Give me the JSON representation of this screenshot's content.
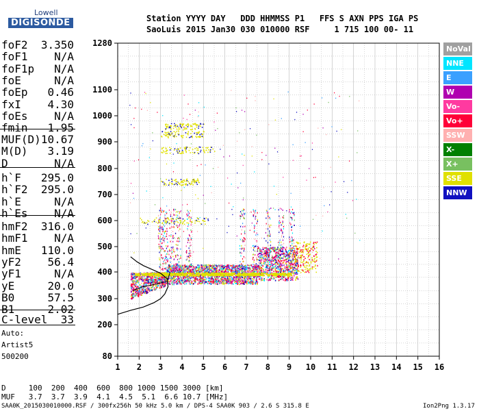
{
  "logo": {
    "line1": "Lowell",
    "line2": "DIGISONDE"
  },
  "header": {
    "row1": "Station YYYY DAY   DDD HHMMSS P1   FFS S AXN PPS IGA PS",
    "row2": "SaoLuis 2015 Jan30 030 010000 RSF     1 715 100 00- 11"
  },
  "params_group1": [
    {
      "k": "foF2",
      "v": "3.350"
    },
    {
      "k": "foF1",
      "v": "N/A"
    },
    {
      "k": "foF1p",
      "v": "N/A"
    },
    {
      "k": "foE",
      "v": "N/A"
    },
    {
      "k": "foEp",
      "v": "0.46"
    },
    {
      "k": "fxI",
      "v": "4.30"
    },
    {
      "k": "foEs",
      "v": "N/A"
    },
    {
      "k": "fmin",
      "v": "1.95"
    }
  ],
  "params_group2": [
    {
      "k": "MUF(D)",
      "v": "10.67"
    },
    {
      "k": "M(D)",
      "v": "3.19"
    },
    {
      "k": "D",
      "v": "N/A"
    }
  ],
  "params_group3": [
    {
      "k": "h`F",
      "v": "295.0"
    },
    {
      "k": "h`F2",
      "v": "295.0"
    },
    {
      "k": "h`E",
      "v": "N/A"
    },
    {
      "k": "h`Es",
      "v": "N/A"
    }
  ],
  "params_group4": [
    {
      "k": "hmF2",
      "v": "316.0"
    },
    {
      "k": "hmF1",
      "v": "N/A"
    },
    {
      "k": "hmE",
      "v": "110.0"
    },
    {
      "k": "yF2",
      "v": "56.4"
    },
    {
      "k": "yF1",
      "v": "N/A"
    },
    {
      "k": "yE",
      "v": "20.0"
    },
    {
      "k": "B0",
      "v": "57.5"
    },
    {
      "k": "B1",
      "v": "2.02"
    }
  ],
  "clevel": {
    "k": "C-level",
    "v": "33"
  },
  "auto": {
    "l1": "Auto:",
    "l2": "Artist5",
    "l3": "500200"
  },
  "legend": [
    {
      "label": "NoVal",
      "color": "#a0a0a0"
    },
    {
      "label": "NNE",
      "color": "#00e5ff"
    },
    {
      "label": "E",
      "color": "#3aa0ff"
    },
    {
      "label": "W",
      "color": "#b000b0"
    },
    {
      "label": "Vo-",
      "color": "#ff3aa0"
    },
    {
      "label": "Vo+",
      "color": "#ff0038"
    },
    {
      "label": "SSW",
      "color": "#ffb0b0"
    },
    {
      "label": "X-",
      "color": "#008000"
    },
    {
      "label": "X+",
      "color": "#78c060"
    },
    {
      "label": "SSE",
      "color": "#e0e000"
    },
    {
      "label": "NNW",
      "color": "#1010c0"
    }
  ],
  "axes": {
    "x_ticks": [
      "1",
      "2",
      "3",
      "4",
      "5",
      "6",
      "7",
      "8",
      "9",
      "10",
      "11",
      "12",
      "13",
      "14",
      "15",
      "16"
    ],
    "y_ticks": [
      "80",
      "200",
      "300",
      "400",
      "500",
      "600",
      "700",
      "800",
      "900",
      "1000",
      "1100",
      "1280"
    ]
  },
  "muf_table": {
    "d_row": "D     100  200  400  600  800 1000 1500 3000 [km]",
    "muf_row": "MUF   3.7  3.7  3.9  4.1  4.5  5.1  6.6 10.7 [MHz]"
  },
  "footer": {
    "left": "SAA0K_2015030010000.RSF / 300fx256h 50 kHz 5.0 km / DPS-4 SAA0K 903 / 2.6 S 315.8 E",
    "right": "Ion2Png 1.3.17"
  }
}
